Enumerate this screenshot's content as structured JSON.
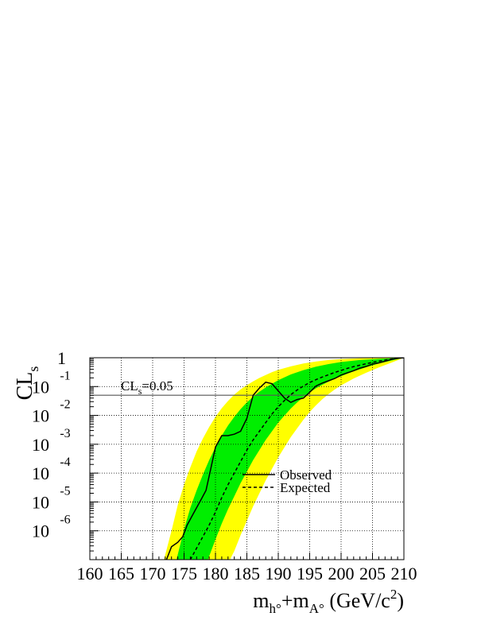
{
  "chart_data": {
    "type": "line",
    "title": "",
    "xlabel": {
      "base1": "m",
      "sub1": "h°",
      "plus": "+m",
      "sub2": "A°",
      "unit_open": " (GeV/c",
      "sup": "2",
      "unit_close": ")"
    },
    "ylabel": {
      "base": "CL",
      "sub": "s"
    },
    "xlim": [
      160,
      210
    ],
    "ylim_log10": [
      -7,
      0
    ],
    "y_scale": "log",
    "grid": true,
    "legend_position": "lower-right",
    "x_ticks": [
      160,
      165,
      170,
      175,
      180,
      185,
      190,
      195,
      200,
      205,
      210
    ],
    "y_ticks": [
      {
        "log": 0,
        "base": "1",
        "exp": ""
      },
      {
        "log": -1,
        "base": "10",
        "exp": "-1"
      },
      {
        "log": -2,
        "base": "10",
        "exp": "-2"
      },
      {
        "log": -3,
        "base": "10",
        "exp": "-3"
      },
      {
        "log": -4,
        "base": "10",
        "exp": "-4"
      },
      {
        "log": -5,
        "base": "10",
        "exp": "-5"
      },
      {
        "log": -6,
        "base": "10",
        "exp": "-6"
      }
    ],
    "reference_line": {
      "y_log10": -1.301,
      "label_base": "CL",
      "label_sub": "s",
      "label_rest": "=0.05",
      "x_label_at": 165
    },
    "colors": {
      "band_2sigma": "#ffff00",
      "band_1sigma": "#00ee00",
      "observed": "#000000",
      "expected": "#000000",
      "grid": "#999999",
      "reference": "#555555"
    },
    "series": [
      {
        "name": "Observed",
        "style": "solid",
        "points": [
          [
            172.2,
            -7.0
          ],
          [
            173.0,
            -6.55
          ],
          [
            174.0,
            -6.4
          ],
          [
            174.8,
            -6.2
          ],
          [
            175.5,
            -5.8
          ],
          [
            176.5,
            -5.4
          ],
          [
            177.5,
            -5.0
          ],
          [
            178.5,
            -4.6
          ],
          [
            179.2,
            -3.9
          ],
          [
            180.0,
            -3.1
          ],
          [
            181.0,
            -2.7
          ],
          [
            182.0,
            -2.7
          ],
          [
            183.0,
            -2.65
          ],
          [
            184.0,
            -2.55
          ],
          [
            185.0,
            -2.1
          ],
          [
            186.0,
            -1.3
          ],
          [
            187.0,
            -1.05
          ],
          [
            188.0,
            -0.85
          ],
          [
            189.0,
            -0.9
          ],
          [
            190.0,
            -1.15
          ],
          [
            191.0,
            -1.4
          ],
          [
            192.0,
            -1.55
          ],
          [
            193.0,
            -1.45
          ],
          [
            194.0,
            -1.4
          ],
          [
            195.0,
            -1.2
          ],
          [
            196.0,
            -0.98
          ],
          [
            197.0,
            -0.88
          ],
          [
            198.0,
            -0.8
          ],
          [
            199.0,
            -0.72
          ],
          [
            200.0,
            -0.6
          ],
          [
            201.0,
            -0.52
          ],
          [
            202.0,
            -0.45
          ],
          [
            203.0,
            -0.36
          ],
          [
            204.0,
            -0.3
          ],
          [
            205.0,
            -0.22
          ],
          [
            206.0,
            -0.18
          ],
          [
            207.0,
            -0.12
          ],
          [
            208.0,
            -0.06
          ],
          [
            209.0,
            -0.02
          ],
          [
            210.0,
            0.0
          ]
        ]
      },
      {
        "name": "Expected",
        "style": "dashed",
        "points": [
          [
            176.0,
            -7.0
          ],
          [
            177.0,
            -6.6
          ],
          [
            178.0,
            -6.2
          ],
          [
            179.0,
            -5.8
          ],
          [
            180.0,
            -5.35
          ],
          [
            181.0,
            -4.85
          ],
          [
            182.0,
            -4.4
          ],
          [
            183.0,
            -4.0
          ],
          [
            184.0,
            -3.6
          ],
          [
            185.0,
            -3.2
          ],
          [
            186.0,
            -2.85
          ],
          [
            187.0,
            -2.55
          ],
          [
            188.0,
            -2.25
          ],
          [
            189.0,
            -1.95
          ],
          [
            190.0,
            -1.7
          ],
          [
            191.0,
            -1.48
          ],
          [
            192.0,
            -1.28
          ],
          [
            193.0,
            -1.12
          ],
          [
            194.0,
            -0.98
          ],
          [
            195.0,
            -0.86
          ],
          [
            196.0,
            -0.76
          ],
          [
            197.0,
            -0.67
          ],
          [
            198.0,
            -0.59
          ],
          [
            199.0,
            -0.51
          ],
          [
            200.0,
            -0.44
          ],
          [
            201.0,
            -0.37
          ],
          [
            202.0,
            -0.31
          ],
          [
            203.0,
            -0.26
          ],
          [
            204.0,
            -0.21
          ],
          [
            205.0,
            -0.16
          ],
          [
            206.0,
            -0.12
          ],
          [
            207.0,
            -0.08
          ],
          [
            208.0,
            -0.05
          ],
          [
            209.0,
            -0.02
          ],
          [
            210.0,
            0.0
          ]
        ]
      }
    ],
    "bands": {
      "outer_left": [
        [
          171.8,
          -7.0
        ],
        [
          173.0,
          -6.0
        ],
        [
          174.0,
          -5.1
        ],
        [
          175.0,
          -4.4
        ],
        [
          176.0,
          -3.8
        ],
        [
          177.0,
          -3.25
        ],
        [
          178.0,
          -2.8
        ],
        [
          179.0,
          -2.4
        ],
        [
          180.0,
          -2.05
        ],
        [
          181.0,
          -1.75
        ],
        [
          182.0,
          -1.5
        ],
        [
          183.0,
          -1.28
        ],
        [
          184.0,
          -1.1
        ],
        [
          185.0,
          -0.95
        ],
        [
          186.0,
          -0.82
        ],
        [
          187.0,
          -0.7
        ],
        [
          188.0,
          -0.6
        ],
        [
          189.0,
          -0.5
        ],
        [
          190.0,
          -0.42
        ],
        [
          192.0,
          -0.3
        ],
        [
          194.0,
          -0.2
        ],
        [
          196.0,
          -0.13
        ],
        [
          198.0,
          -0.08
        ],
        [
          200.0,
          -0.05
        ],
        [
          203.0,
          -0.02
        ],
        [
          206.0,
          -0.01
        ],
        [
          210.0,
          0.0
        ]
      ],
      "inner_left": [
        [
          173.8,
          -7.0
        ],
        [
          175.0,
          -5.95
        ],
        [
          176.0,
          -5.2
        ],
        [
          177.0,
          -4.6
        ],
        [
          178.0,
          -4.05
        ],
        [
          179.0,
          -3.55
        ],
        [
          180.0,
          -3.1
        ],
        [
          181.0,
          -2.7
        ],
        [
          182.0,
          -2.35
        ],
        [
          183.0,
          -2.05
        ],
        [
          184.0,
          -1.78
        ],
        [
          185.0,
          -1.55
        ],
        [
          186.0,
          -1.35
        ],
        [
          187.0,
          -1.18
        ],
        [
          188.0,
          -1.03
        ],
        [
          189.0,
          -0.9
        ],
        [
          190.0,
          -0.78
        ],
        [
          192.0,
          -0.58
        ],
        [
          194.0,
          -0.43
        ],
        [
          196.0,
          -0.31
        ],
        [
          198.0,
          -0.22
        ],
        [
          200.0,
          -0.15
        ],
        [
          203.0,
          -0.08
        ],
        [
          206.0,
          -0.04
        ],
        [
          210.0,
          0.0
        ]
      ],
      "inner_right": [
        [
          178.8,
          -7.0
        ],
        [
          180.0,
          -6.3
        ],
        [
          181.0,
          -5.75
        ],
        [
          182.0,
          -5.25
        ],
        [
          183.0,
          -4.8
        ],
        [
          184.0,
          -4.35
        ],
        [
          185.0,
          -3.95
        ],
        [
          186.0,
          -3.55
        ],
        [
          187.0,
          -3.2
        ],
        [
          188.0,
          -2.85
        ],
        [
          189.0,
          -2.55
        ],
        [
          190.0,
          -2.25
        ],
        [
          191.0,
          -2.0
        ],
        [
          192.0,
          -1.76
        ],
        [
          193.0,
          -1.55
        ],
        [
          194.0,
          -1.36
        ],
        [
          195.0,
          -1.2
        ],
        [
          196.0,
          -1.06
        ],
        [
          197.0,
          -0.94
        ],
        [
          198.0,
          -0.83
        ],
        [
          199.0,
          -0.73
        ],
        [
          200.0,
          -0.64
        ],
        [
          202.0,
          -0.47
        ],
        [
          204.0,
          -0.33
        ],
        [
          206.0,
          -0.2
        ],
        [
          208.0,
          -0.1
        ],
        [
          210.0,
          0.0
        ]
      ],
      "outer_right": [
        [
          182.3,
          -7.0
        ],
        [
          183.0,
          -6.7
        ],
        [
          184.0,
          -6.15
        ],
        [
          185.0,
          -5.65
        ],
        [
          186.0,
          -5.15
        ],
        [
          187.0,
          -4.7
        ],
        [
          188.0,
          -4.25
        ],
        [
          189.0,
          -3.85
        ],
        [
          190.0,
          -3.45
        ],
        [
          191.0,
          -3.1
        ],
        [
          192.0,
          -2.75
        ],
        [
          193.0,
          -2.45
        ],
        [
          194.0,
          -2.15
        ],
        [
          195.0,
          -1.88
        ],
        [
          196.0,
          -1.65
        ],
        [
          197.0,
          -1.44
        ],
        [
          198.0,
          -1.26
        ],
        [
          199.0,
          -1.1
        ],
        [
          200.0,
          -0.96
        ],
        [
          201.0,
          -0.84
        ],
        [
          202.0,
          -0.72
        ],
        [
          204.0,
          -0.52
        ],
        [
          206.0,
          -0.34
        ],
        [
          208.0,
          -0.17
        ],
        [
          210.0,
          0.0
        ]
      ]
    },
    "legend": [
      {
        "label": "Observed",
        "style": "solid"
      },
      {
        "label": "Expected",
        "style": "dashed"
      }
    ]
  }
}
